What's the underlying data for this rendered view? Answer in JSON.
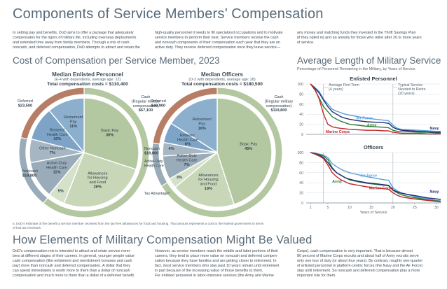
{
  "title": "Components of Service Members’ Compensation",
  "intro": {
    "col1": [
      "In setting pay and benefits, DoD aims to offer a package that adequately",
      "compensates for the rigors of military life, including overseas deployments",
      "and extended time away from family members. Through a mix of cash,",
      "noncash, and deferred compensation, DoD attempts to attract and retain the"
    ],
    "col2": [
      "high-quality personnel it needs to fill specialized occupations and to motivate",
      "service members to perform their best. Service members receive the cash",
      "and noncash components of their compensation each year that they are on",
      "active duty. They receive deferred compensation once they leave service—"
    ],
    "col3": [
      "any money and matching funds they invested in the Thrift Savings Plan",
      "(if they opted in) and an annuity for those who retire after 20 or more years",
      "of service."
    ]
  },
  "section1_title": "Cost of Compensation per Service Member, 2023",
  "colors": {
    "cash": "#b3c8a0",
    "noncash": "#9aacb9",
    "deferred": "#b77e66",
    "retirement": "#7da4c7",
    "inner_basic": "#b3c8a0",
    "inner_allow": "#c7d7b8",
    "inner_tax": "#d5e1c9"
  },
  "chart_data": [
    {
      "type": "pie",
      "title": "Median Enlisted Personnel",
      "subtitle": "(E-4 with dependents, average age: 22)",
      "total": "Total compensation costs = $110,400",
      "outer": [
        {
          "label": "Cash (Regular military compensation)",
          "value": "$67,100",
          "amount": 67100
        },
        {
          "label": "Noncash",
          "value": "$19,800",
          "amount": 19800
        },
        {
          "label": "Deferred",
          "value": "$23,500",
          "amount": 23500
        }
      ],
      "inner": [
        {
          "label": "Basic Pay",
          "pct": 30
        },
        {
          "label": "Allowances for Housing and Food",
          "pct": 26
        },
        {
          "label": "Tax Advantage",
          "pct": 5
        },
        {
          "label": "Active-Duty Health Care",
          "pct": 11
        },
        {
          "label": "Other Noncash",
          "pct": 7
        },
        {
          "label": "Retirees’ Health Care",
          "pct": 10
        },
        {
          "label": "Retirement Pay",
          "pct": 11
        }
      ]
    },
    {
      "type": "pie",
      "title": "Median Officers",
      "subtitle": "(O-3 with dependents, average age: 28)",
      "total": "Total compensation costs = $180,500",
      "outer": [
        {
          "label": "Cash (Regular military compensation)",
          "value": "$119,800",
          "amount": 119800
        },
        {
          "label": "Noncash",
          "value": "$19,800",
          "amount": 19800
        },
        {
          "label": "Deferred",
          "value": "$40,900",
          "amount": 40900
        }
      ],
      "inner": [
        {
          "label": "Basic Pay",
          "pct": 45
        },
        {
          "label": "Allowances for Housing and Food",
          "pct": 19
        },
        {
          "label": "Tax Advantage",
          "pct": 3
        },
        {
          "label": "Active-Duty Health Care",
          "pct": 7
        },
        {
          "label": "Other Noncash",
          "pct": 4
        },
        {
          "label": "Retirees’ Health Care",
          "pct": 6
        },
        {
          "label": "Retirement Pay",
          "pct": 16
        }
      ]
    },
    {
      "type": "line",
      "title": "Enlisted Personnel",
      "xlim": [
        0,
        31
      ],
      "ylim": [
        0,
        100
      ],
      "yticks": [
        0,
        20,
        40,
        60,
        80,
        100
      ],
      "series": [
        {
          "name": "Air Force",
          "color": "#5aa0d8",
          "x": [
            1,
            2,
            3,
            4,
            5,
            6,
            7,
            8,
            9,
            10,
            12,
            14,
            16,
            18,
            19,
            20,
            21,
            22,
            24,
            26,
            28,
            30,
            31
          ],
          "y": [
            100,
            93,
            85,
            70,
            60,
            50,
            46,
            43,
            40,
            38,
            35,
            32,
            30,
            28,
            27,
            18,
            12,
            10,
            9,
            8,
            7,
            6,
            6
          ]
        },
        {
          "name": "Army",
          "color": "#2f7d32",
          "x": [
            1,
            2,
            3,
            4,
            5,
            6,
            7,
            8,
            9,
            10,
            12,
            14,
            16,
            18,
            19,
            20,
            21,
            22,
            24,
            26,
            28,
            30,
            31
          ],
          "y": [
            100,
            88,
            72,
            55,
            45,
            35,
            30,
            26,
            23,
            20,
            18,
            16,
            15,
            14,
            13,
            8,
            6,
            5,
            5,
            4,
            4,
            3,
            3
          ]
        },
        {
          "name": "Navy",
          "color": "#1f2c7a",
          "x": [
            1,
            2,
            3,
            4,
            5,
            6,
            7,
            8,
            9,
            10,
            12,
            14,
            16,
            18,
            19,
            20,
            21,
            22,
            24,
            26,
            28,
            30,
            31
          ],
          "y": [
            100,
            92,
            82,
            68,
            55,
            45,
            40,
            35,
            32,
            30,
            27,
            25,
            24,
            23,
            22,
            14,
            10,
            8,
            7,
            6,
            5,
            4,
            4
          ]
        },
        {
          "name": "Marine Corps",
          "color": "#c0292b",
          "x": [
            1,
            2,
            3,
            4,
            5,
            6,
            7,
            8,
            9,
            10,
            12,
            14,
            16,
            18,
            19,
            20,
            21,
            22,
            24,
            26,
            28,
            30,
            31
          ],
          "y": [
            100,
            90,
            70,
            40,
            20,
            15,
            13,
            12,
            11,
            10,
            9,
            8,
            8,
            7,
            7,
            4,
            3,
            2,
            2,
            2,
            1,
            1,
            1
          ]
        }
      ],
      "annotations": [
        "Average First Term (4 years)",
        "Typical Service Needed to Retire (20 years)"
      ]
    },
    {
      "type": "line",
      "title": "Officers",
      "xlabel": "Years of Service",
      "xlim": [
        0,
        31
      ],
      "ylim": [
        0,
        100
      ],
      "xticks": [
        1,
        5,
        10,
        15,
        20,
        25,
        30
      ],
      "yticks": [
        0,
        20,
        40,
        60,
        80,
        100
      ],
      "series": [
        {
          "name": "Air Force",
          "color": "#5aa0d8",
          "x": [
            1,
            2,
            3,
            4,
            5,
            6,
            7,
            8,
            9,
            10,
            12,
            14,
            16,
            18,
            19,
            20,
            21,
            22,
            24,
            26,
            28,
            30,
            31
          ],
          "y": [
            100,
            99,
            97,
            95,
            90,
            78,
            72,
            67,
            63,
            60,
            56,
            52,
            49,
            46,
            45,
            30,
            24,
            20,
            15,
            11,
            8,
            5,
            4
          ]
        },
        {
          "name": "Army",
          "color": "#2f7d32",
          "x": [
            1,
            2,
            3,
            4,
            5,
            6,
            7,
            8,
            9,
            10,
            12,
            14,
            16,
            18,
            19,
            20,
            21,
            22,
            24,
            26,
            28,
            30,
            31
          ],
          "y": [
            100,
            98,
            96,
            93,
            86,
            70,
            60,
            55,
            50,
            46,
            42,
            39,
            37,
            35,
            34,
            25,
            20,
            16,
            12,
            9,
            6,
            4,
            3
          ]
        },
        {
          "name": "Navy",
          "color": "#1f2c7a",
          "x": [
            1,
            2,
            3,
            4,
            5,
            6,
            7,
            8,
            9,
            10,
            12,
            14,
            16,
            18,
            19,
            20,
            21,
            22,
            24,
            26,
            28,
            30,
            31
          ],
          "y": [
            100,
            98,
            95,
            90,
            80,
            68,
            60,
            55,
            50,
            47,
            43,
            40,
            38,
            36,
            35,
            26,
            22,
            19,
            16,
            13,
            10,
            8,
            7
          ]
        },
        {
          "name": "Marine Corps",
          "color": "#c0292b",
          "x": [
            1,
            2,
            3,
            4,
            5,
            6,
            7,
            8,
            9,
            10,
            12,
            14,
            16,
            18,
            19,
            20,
            21,
            22,
            24,
            26,
            28,
            30,
            31
          ],
          "y": [
            100,
            97,
            93,
            88,
            75,
            60,
            52,
            46,
            42,
            38,
            35,
            32,
            30,
            28,
            27,
            20,
            15,
            12,
            9,
            7,
            5,
            3,
            2
          ]
        }
      ]
    }
  ],
  "line_section_title": "Average Length of Military Service",
  "line_section_subtitle": "Percentage of Personnel Remaining in the Military, by Years of Service",
  "footnote": [
    "a. DoD’s estimate of the benefit a service member receives from the tax-free allowances for food and housing. That amount represents a cost to the federal government in terms",
    "of lost tax revenues."
  ],
  "section2_title": "How Elements of Military Compensation Might Be Valued",
  "outro": {
    "col1": [
      "DoD’s compensation mix is intended to attract and retain service mem-",
      "bers at different stages of their careers. In general, younger people value",
      "cash compensation (like enlistment and reenlistment bonuses and cash",
      "pay) more than noncash and deferred compensation. A dollar that they",
      "can spend immediately is worth more to them than a dollar of noncash",
      "compensation and much more to them than a dollar of a deferred benefit."
    ],
    "col2": [
      "However, as service members reach the middle and latter portions of their",
      "careers, they tend to place more value on noncash and deferred compen-",
      "sation because they have families and are getting closer to retirement. In",
      "fact, most service members who stay past 10 years remain until retirement",
      "in part because of the increasing value of those benefits to them.",
      "     For enlisted personnel in labor-intensive services (the Army and Marine"
    ],
    "col3": [
      "Corps), cash compensation is very important. That is because almost",
      "80 percent of Marine Corps recruits and about half of Army recruits serve",
      "only one tour of duty (or about four years). By contrast, roughly one-quarter",
      "of enlisted personnel in platform-centric forces (the Navy and the Air Force)",
      "stay until retirement. So noncash and deferred compensation play a more",
      "important role for them."
    ]
  }
}
